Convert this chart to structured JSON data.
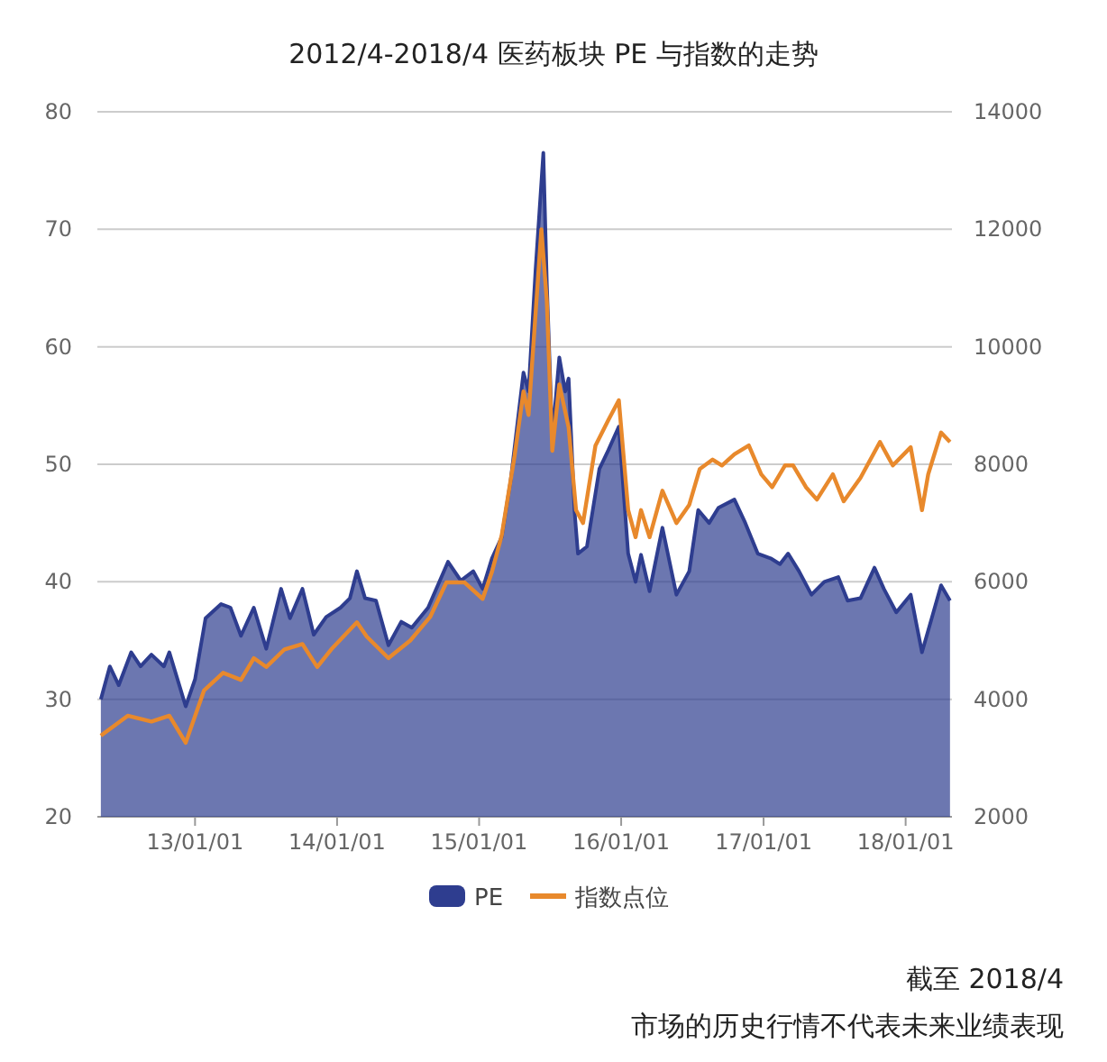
{
  "chart_data": {
    "type": "area",
    "title": "2012/4-2018/4 医药板块 PE 与指数的走势",
    "xlim": [
      "2012-04-25",
      "2018-04-30"
    ],
    "xticks": [
      {
        "value": "2013-01-01",
        "label": "13/01/01"
      },
      {
        "value": "2014-01-01",
        "label": "14/01/01"
      },
      {
        "value": "2015-01-01",
        "label": "15/01/01"
      },
      {
        "value": "2016-01-01",
        "label": "16/01/01"
      },
      {
        "value": "2017-01-01",
        "label": "17/01/01"
      },
      {
        "value": "2018-01-01",
        "label": "18/01/01"
      }
    ],
    "ylim": [
      20,
      80
    ],
    "yticks": [
      20,
      30,
      40,
      50,
      60,
      70,
      80
    ],
    "y2lim": [
      2000,
      14000
    ],
    "y2ticks": [
      2000,
      4000,
      6000,
      8000,
      10000,
      12000,
      14000
    ],
    "grid": "y",
    "legend": "bottom",
    "series": [
      {
        "name": "PE",
        "color": "#2e3d8f",
        "x": [
          "2012-05-04",
          "2012-05-27",
          "2012-06-19",
          "2012-07-21",
          "2012-08-14",
          "2012-09-11",
          "2012-10-13",
          "2012-10-27",
          "2012-12-08",
          "2013-01-01",
          "2013-01-28",
          "2013-03-09",
          "2013-04-02",
          "2013-04-29",
          "2013-06-01",
          "2013-07-03",
          "2013-08-10",
          "2013-09-02",
          "2013-10-04",
          "2013-11-02",
          "2013-12-04",
          "2014-01-10",
          "2014-02-03",
          "2014-02-21",
          "2014-03-14",
          "2014-04-11",
          "2014-05-13",
          "2014-06-15",
          "2014-07-12",
          "2014-08-23",
          "2014-10-13",
          "2014-11-15",
          "2014-12-17",
          "2015-01-10",
          "2015-02-03",
          "2015-02-28",
          "2015-03-23",
          "2015-04-25",
          "2015-05-08",
          "2015-05-26",
          "2015-06-15",
          "2015-06-24",
          "2015-07-08",
          "2015-07-26",
          "2015-08-10",
          "2015-08-19",
          "2015-09-03",
          "2015-09-12",
          "2015-10-05",
          "2015-11-06",
          "2015-11-29",
          "2015-12-26",
          "2016-01-19",
          "2016-02-07",
          "2016-02-21",
          "2016-03-14",
          "2016-04-16",
          "2016-05-22",
          "2016-06-24",
          "2016-07-17",
          "2016-08-14",
          "2016-09-07",
          "2016-10-18",
          "2016-11-15",
          "2016-12-17",
          "2017-01-19",
          "2017-02-12",
          "2017-03-05",
          "2017-04-02",
          "2017-05-04",
          "2017-06-06",
          "2017-07-12",
          "2017-08-05",
          "2017-09-07",
          "2017-10-13",
          "2017-11-06",
          "2017-12-08",
          "2018-01-14",
          "2018-02-12",
          "2018-03-09",
          "2018-04-02",
          "2018-04-25"
        ],
        "values": [
          30.0,
          32.8,
          31.2,
          34.0,
          32.8,
          33.8,
          32.8,
          34.0,
          29.4,
          31.7,
          36.9,
          38.1,
          37.8,
          35.4,
          37.8,
          34.3,
          39.4,
          36.9,
          39.4,
          35.5,
          37.0,
          37.8,
          38.6,
          40.9,
          38.6,
          38.4,
          34.6,
          36.6,
          36.1,
          37.8,
          41.7,
          40.1,
          40.9,
          39.4,
          42.0,
          43.8,
          48.6,
          57.8,
          56.2,
          66.5,
          76.5,
          65.4,
          52.2,
          59.1,
          56.2,
          57.3,
          46.1,
          42.4,
          43.0,
          49.6,
          51.2,
          53.2,
          42.4,
          40.0,
          42.3,
          39.2,
          44.6,
          38.9,
          40.9,
          46.1,
          45.0,
          46.3,
          47.0,
          45.0,
          42.4,
          42.0,
          41.5,
          42.4,
          40.9,
          38.9,
          40.0,
          40.4,
          38.4,
          38.6,
          41.2,
          39.4,
          37.4,
          38.9,
          34.0,
          36.9,
          39.7,
          38.4
        ]
      },
      {
        "name": "指数点位",
        "type": "line",
        "axis": "y2",
        "color": "#e8892c",
        "x": [
          "2012-05-04",
          "2012-07-12",
          "2012-09-11",
          "2012-10-27",
          "2012-12-08",
          "2013-01-24",
          "2013-03-14",
          "2013-04-29",
          "2013-06-01",
          "2013-07-03",
          "2013-08-19",
          "2013-10-04",
          "2013-11-11",
          "2013-12-17",
          "2014-02-21",
          "2014-03-18",
          "2014-05-13",
          "2014-07-08",
          "2014-08-28",
          "2014-10-09",
          "2014-11-24",
          "2015-01-10",
          "2015-02-03",
          "2015-02-28",
          "2015-04-02",
          "2015-04-25",
          "2015-05-08",
          "2015-06-10",
          "2015-06-24",
          "2015-07-08",
          "2015-07-26",
          "2015-08-19",
          "2015-09-07",
          "2015-09-25",
          "2015-10-27",
          "2015-11-29",
          "2015-12-26",
          "2016-01-19",
          "2016-02-07",
          "2016-02-21",
          "2016-03-14",
          "2016-04-16",
          "2016-05-22",
          "2016-06-24",
          "2016-07-21",
          "2016-08-23",
          "2016-09-16",
          "2016-10-18",
          "2016-11-24",
          "2016-12-26",
          "2017-01-23",
          "2017-02-25",
          "2017-03-18",
          "2017-04-20",
          "2017-05-18",
          "2017-06-28",
          "2017-07-26",
          "2017-09-07",
          "2017-10-27",
          "2017-11-29",
          "2018-01-14",
          "2018-02-12",
          "2018-02-28",
          "2018-04-02",
          "2018-04-25"
        ],
        "values": [
          3380,
          3720,
          3620,
          3720,
          3260,
          4150,
          4450,
          4330,
          4700,
          4550,
          4850,
          4940,
          4550,
          4850,
          5310,
          5070,
          4700,
          5000,
          5400,
          5990,
          5990,
          5710,
          6170,
          6790,
          8140,
          9240,
          8840,
          12000,
          10780,
          8230,
          9360,
          8630,
          7220,
          7000,
          8320,
          8750,
          9090,
          7220,
          6760,
          7220,
          6760,
          7550,
          7000,
          7310,
          7920,
          8080,
          7980,
          8170,
          8320,
          7830,
          7610,
          7980,
          7980,
          7610,
          7400,
          7830,
          7370,
          7770,
          8380,
          7980,
          8290,
          7220,
          7830,
          8540,
          8380
        ]
      }
    ],
    "annotations": [
      "截至 2018/4",
      "市场的历史行情不代表未来业绩表现"
    ]
  }
}
